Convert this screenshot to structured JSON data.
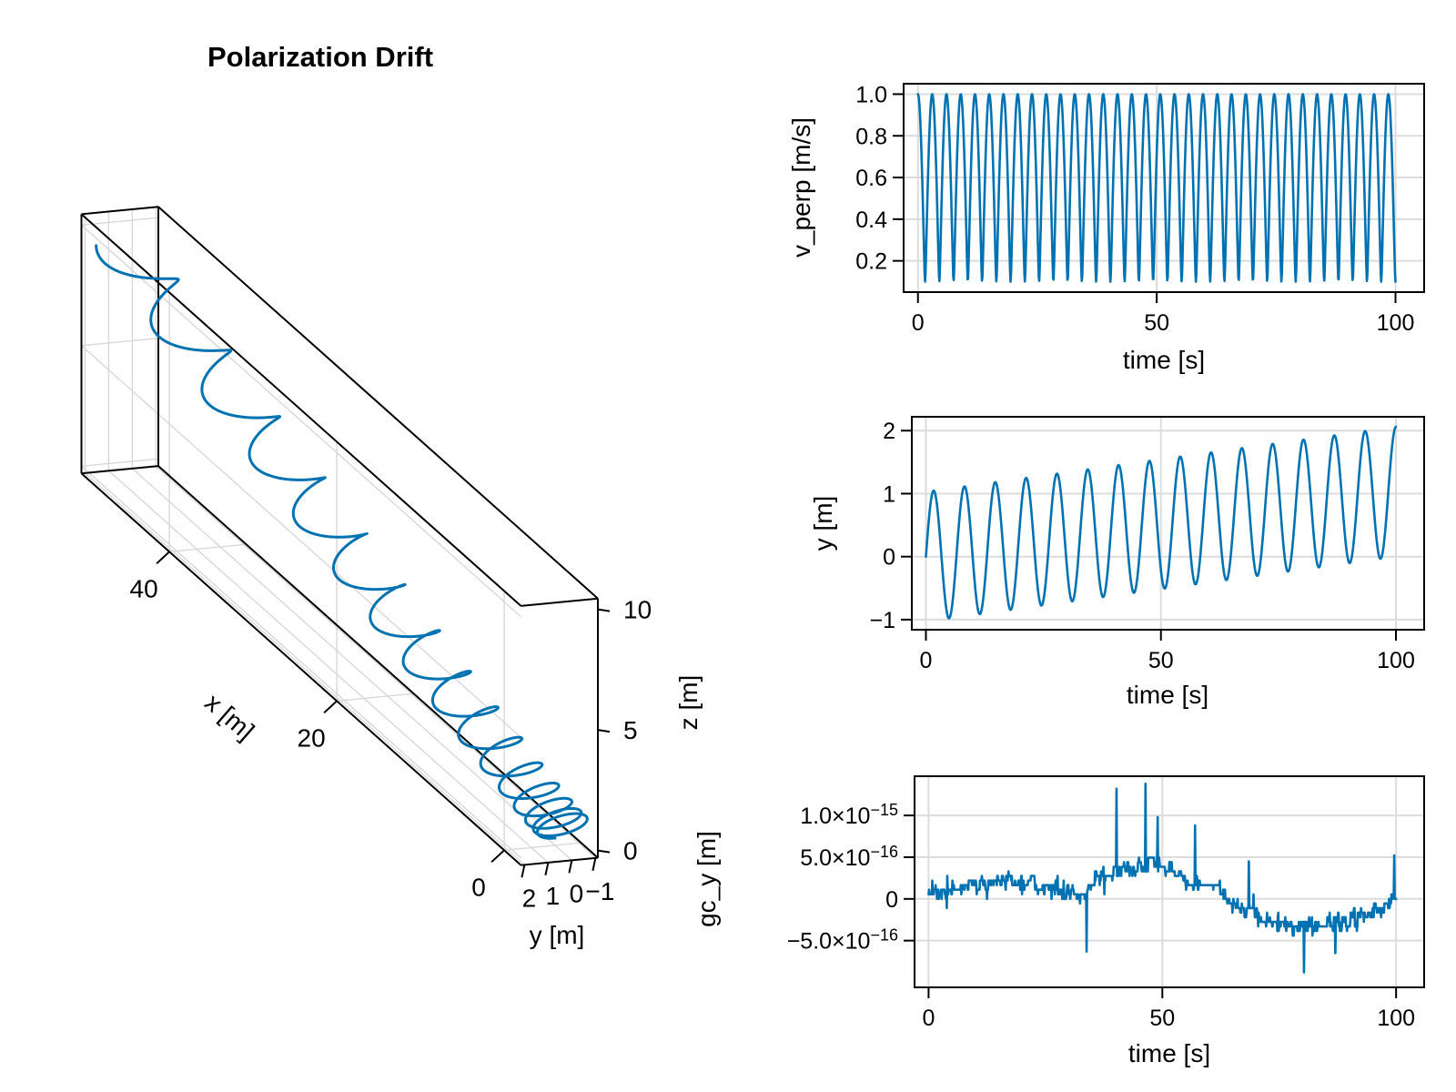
{
  "title": "Polarization Drift",
  "colors": {
    "line": "#0072B2",
    "grid": "#dcdcdc",
    "grid3d": "#d8d8d8",
    "frame": "#000000",
    "background": "#ffffff"
  },
  "chart_data": [
    {
      "id": "trajectory3d",
      "type": "line3d",
      "title": "Polarization Drift",
      "xlabel": "x [m]",
      "ylabel": "y [m]",
      "zlabel": "z [m]",
      "xlim": [
        -2,
        50.5
      ],
      "ylim": [
        -1.1,
        2.15
      ],
      "zlim": [
        -0.3,
        10.45
      ],
      "xticks": [
        0,
        20,
        40
      ],
      "xtick_labels": [
        "0",
        "20",
        "40"
      ],
      "yticks": [
        2,
        1,
        0,
        -1
      ],
      "ytick_labels": [
        "2",
        "1",
        "0",
        "−1"
      ],
      "zticks": [
        0,
        5,
        10
      ],
      "ztick_labels": [
        "0",
        "5",
        "10"
      ],
      "signal": {
        "kind": "cycloid3d",
        "t0": 0,
        "t1": 100,
        "dt": 0.05,
        "x_drift_accel": 0.005,
        "x_gyro_amp": 1.0,
        "y_slope": 0.0103,
        "y_gyro_amp": 1.03,
        "z_drift_accel": 0.00088,
        "z_gyro_amp": 0.8,
        "omega": 0.9582
      },
      "description": "Charged-particle trajectory: tight gyro-loops near x=0 opening into cycloid arcs as the drift accelerates toward x=50, z rising 0 to 10."
    },
    {
      "id": "v_perp",
      "type": "line",
      "xlabel": "time [s]",
      "ylabel": "v_perp [m/s]",
      "xlim": [
        -3,
        106
      ],
      "ylim": [
        0.05,
        1.05
      ],
      "xticks": [
        0,
        50,
        100
      ],
      "xtick_labels": [
        "0",
        "50",
        "100"
      ],
      "yticks": [
        0.2,
        0.4,
        0.6,
        0.8,
        1.0
      ],
      "ytick_labels": [
        "0.2",
        "0.4",
        "0.6",
        "0.8",
        "1.0"
      ],
      "y_data_range": [
        0.1,
        1.0
      ],
      "signal": {
        "kind": "sqrt_cos",
        "a": 0.55,
        "b": 0.45,
        "omega": 2.105,
        "t0": 0,
        "t1": 100,
        "dt": 0.1
      },
      "description": "Perpendicular speed oscillating between 0.1 and 1.0 m/s, ~33 cycles over 100 s."
    },
    {
      "id": "y_position",
      "type": "line",
      "xlabel": "time [s]",
      "ylabel": "y [m]",
      "xlim": [
        -3,
        106
      ],
      "ylim": [
        -1.16,
        2.22
      ],
      "xticks": [
        0,
        50,
        100
      ],
      "xtick_labels": [
        "0",
        "50",
        "100"
      ],
      "yticks": [
        -1,
        0,
        1,
        2
      ],
      "ytick_labels": [
        "−1",
        "0",
        "1",
        "2"
      ],
      "signal": {
        "kind": "drift_sine",
        "offset": 0,
        "slope": 0.0103,
        "amp": 1.03,
        "omega": 0.9582,
        "t0": 0,
        "t1": 100,
        "dt": 0.1
      },
      "description": "Sinusoid of amplitude ~1 m drifting upward from mean 0 to mean ~1 m over 100 s; first peak 1.05, final peak 2.07."
    },
    {
      "id": "gc_y",
      "type": "line",
      "xlabel": "time [s]",
      "ylabel": "gc_y [m]",
      "xlim": [
        -3,
        106
      ],
      "ylim": [
        -1.06e-15,
        1.47e-15
      ],
      "xticks": [
        0,
        50,
        100
      ],
      "xtick_labels": [
        "0",
        "50",
        "100"
      ],
      "yticks": [
        -5e-16,
        0,
        5e-16,
        1e-15
      ],
      "ytick_labels": [
        "−5.0×10^−16",
        "0",
        "5.0×10^−16",
        "1.0×10^−15"
      ],
      "signal": {
        "kind": "quant_noise",
        "seed": 12345,
        "t0": 0,
        "t1": 100,
        "dt": 0.1,
        "quantum": 5.5e-17,
        "sigma": 1.4e-16,
        "p_change": 0.32,
        "bias_keypoints": [
          [
            0,
            3e-17
          ],
          [
            5,
            1.2e-16
          ],
          [
            12,
            1.8e-16
          ],
          [
            20,
            2.2e-16
          ],
          [
            28,
            1.2e-16
          ],
          [
            33,
            2e-17
          ],
          [
            36,
            2.6e-16
          ],
          [
            42,
            3.3e-16
          ],
          [
            48,
            4.6e-16
          ],
          [
            52,
            3.8e-16
          ],
          [
            56,
            1.5e-16
          ],
          [
            60,
            1.8e-16
          ],
          [
            63,
            4e-17
          ],
          [
            68,
            -1.6e-16
          ],
          [
            72,
            -2.8e-16
          ],
          [
            78,
            -3.4e-16
          ],
          [
            84,
            -3.2e-16
          ],
          [
            88,
            -2.6e-16
          ],
          [
            93,
            -2.2e-16
          ],
          [
            97,
            -1.2e-16
          ],
          [
            100,
            8e-17
          ]
        ],
        "spikes": [
          [
            33.8,
            -6.3e-16
          ],
          [
            40.2,
            1.32e-15
          ],
          [
            46.4,
            1.38e-15
          ],
          [
            49,
            9.8e-16
          ],
          [
            57,
            8.8e-16
          ],
          [
            68.5,
            4.5e-16
          ],
          [
            80.3,
            -8.8e-16
          ],
          [
            87,
            -6.5e-16
          ],
          [
            99.6,
            5.2e-16
          ]
        ]
      },
      "description": "Guiding-center y error at machine precision: quantized noise around 0, rising to ~5e-16 near t=45 with spikes to ~1.35e-15, dipping to ~-5e-16 around t=75-90."
    }
  ]
}
